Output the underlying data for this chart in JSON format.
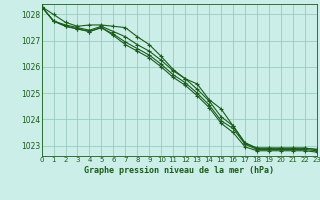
{
  "title": "Graphe pression niveau de la mer (hPa)",
  "bg_color": "#cceee8",
  "grid_color": "#99ccbb",
  "line_color": "#1a5c1a",
  "xlim": [
    0,
    23
  ],
  "ylim": [
    1022.6,
    1028.4
  ],
  "yticks": [
    1023,
    1024,
    1025,
    1026,
    1027,
    1028
  ],
  "xticks": [
    0,
    1,
    2,
    3,
    4,
    5,
    6,
    7,
    8,
    9,
    10,
    11,
    12,
    13,
    14,
    15,
    16,
    17,
    18,
    19,
    20,
    21,
    22,
    23
  ],
  "series": [
    [
      1028.3,
      1028.0,
      1027.7,
      1027.55,
      1027.6,
      1027.6,
      1027.55,
      1027.5,
      1027.15,
      1026.85,
      1026.4,
      1025.9,
      1025.55,
      1025.35,
      1024.75,
      1024.4,
      1023.75,
      1023.1,
      1022.9,
      1022.9,
      1022.9,
      1022.9,
      1022.9,
      1022.85
    ],
    [
      1028.3,
      1027.75,
      1027.6,
      1027.5,
      1027.4,
      1027.55,
      1027.35,
      1027.15,
      1026.85,
      1026.6,
      1026.25,
      1025.85,
      1025.55,
      1025.15,
      1024.7,
      1024.1,
      1023.75,
      1023.1,
      1022.9,
      1022.9,
      1022.9,
      1022.9,
      1022.9,
      1022.85
    ],
    [
      1028.3,
      1027.75,
      1027.55,
      1027.45,
      1027.35,
      1027.5,
      1027.25,
      1026.95,
      1026.7,
      1026.45,
      1026.1,
      1025.7,
      1025.4,
      1025.0,
      1024.55,
      1023.95,
      1023.65,
      1023.05,
      1022.85,
      1022.85,
      1022.85,
      1022.85,
      1022.85,
      1022.8
    ],
    [
      1028.3,
      1027.75,
      1027.55,
      1027.45,
      1027.35,
      1027.5,
      1027.2,
      1026.85,
      1026.6,
      1026.35,
      1026.0,
      1025.6,
      1025.3,
      1024.9,
      1024.45,
      1023.85,
      1023.5,
      1022.95,
      1022.8,
      1022.8,
      1022.8,
      1022.8,
      1022.8,
      1022.75
    ]
  ]
}
